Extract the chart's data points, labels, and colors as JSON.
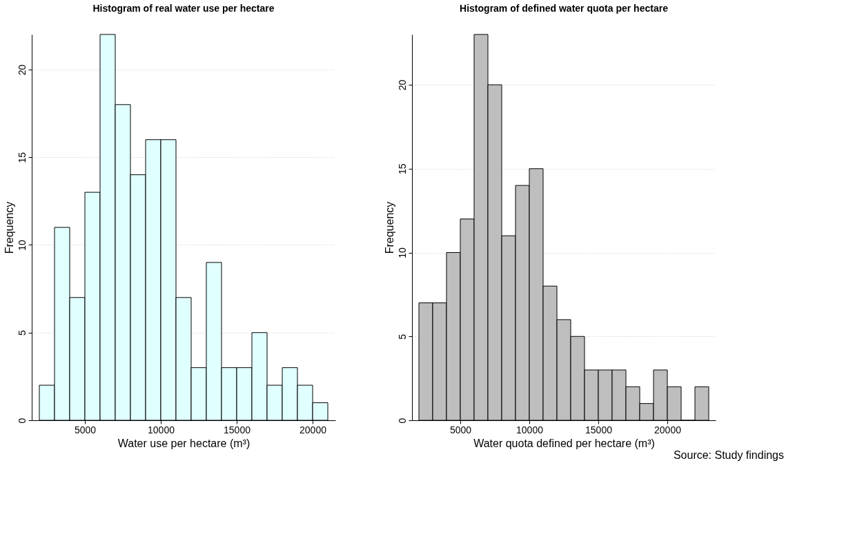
{
  "chart_data": [
    {
      "type": "histogram",
      "title": "Histogram of real water use per hectare",
      "xlabel": "Water use per hectare (m³)",
      "ylabel": "Frequency",
      "bins": [
        2000,
        3000,
        4000,
        5000,
        6000,
        7000,
        8000,
        9000,
        10000,
        11000,
        12000,
        13000,
        14000,
        15000,
        16000,
        17000,
        18000,
        19000,
        20000,
        21000
      ],
      "values": [
        2,
        11,
        7,
        13,
        22,
        18,
        14,
        16,
        16,
        7,
        3,
        9,
        3,
        3,
        5,
        2,
        3,
        2,
        1
      ],
      "color": "#e0ffff",
      "xlim": [
        1500,
        21500
      ],
      "xticks": [
        5000,
        10000,
        15000,
        20000
      ],
      "ylim": [
        0,
        22
      ],
      "yticks": [
        0,
        5,
        10,
        15,
        20
      ],
      "grid": "y"
    },
    {
      "type": "histogram",
      "title": "Histogram of defined water quota per hectare",
      "xlabel": "Water quota defined per hectare (m³)",
      "ylabel": "Frequency",
      "bins": [
        2000,
        3000,
        4000,
        5000,
        6000,
        7000,
        8000,
        9000,
        10000,
        11000,
        12000,
        13000,
        14000,
        15000,
        16000,
        17000,
        18000,
        19000,
        20000,
        21000,
        22000,
        23000
      ],
      "values": [
        7,
        7,
        10,
        12,
        23,
        20,
        11,
        14,
        15,
        8,
        6,
        5,
        3,
        3,
        3,
        2,
        1,
        3,
        2,
        0,
        2
      ],
      "color": "#bebebe",
      "xlim": [
        1500,
        23500
      ],
      "xticks": [
        5000,
        10000,
        15000,
        20000
      ],
      "ylim": [
        0,
        23
      ],
      "yticks": [
        0,
        5,
        10,
        15,
        20
      ],
      "grid": "y",
      "annotations": [
        "Source: Study findings"
      ]
    }
  ]
}
